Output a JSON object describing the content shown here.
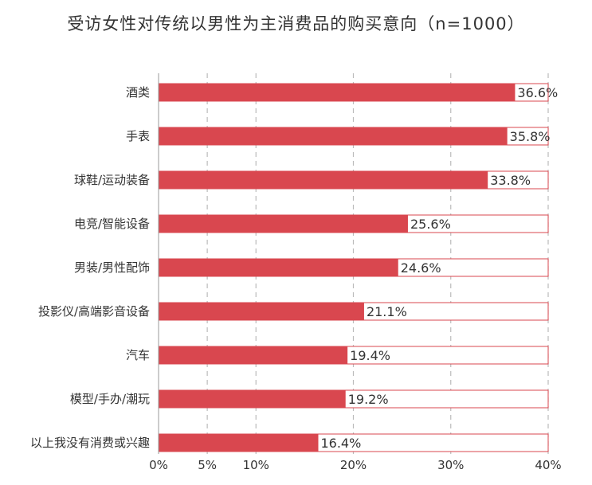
{
  "chart_data": {
    "type": "bar",
    "orientation": "horizontal",
    "title": "受访女性对传统以男性为主消费品的购买意向（n=1000）",
    "categories": [
      "酒类",
      "手表",
      "球鞋/运动装备",
      "电竞/智能设备",
      "男装/男性配饰",
      "投影仪/高端影音设备",
      "汽车",
      "模型/手办/潮玩",
      "以上我没有消费或兴趣"
    ],
    "values": [
      36.6,
      35.8,
      33.8,
      25.6,
      24.6,
      21.1,
      19.4,
      19.2,
      16.4
    ],
    "value_labels": [
      "36.6%",
      "35.8%",
      "33.8%",
      "25.6%",
      "24.6%",
      "21.1%",
      "19.4%",
      "19.2%",
      "16.4%"
    ],
    "xlim": [
      0,
      40
    ],
    "x_ticks": [
      0,
      10,
      20,
      30,
      40
    ],
    "x_tick_labels": [
      "0%",
      "10%",
      "20%",
      "30%",
      "40%"
    ],
    "extra_x_ticks": [
      5
    ],
    "extra_x_tick_labels": [
      "5%"
    ],
    "grid": "vertical dashed",
    "colors": {
      "bar": "#d9474f",
      "track_border": "#d9474f",
      "grid": "#bbbbbb",
      "text": "#333333"
    }
  }
}
